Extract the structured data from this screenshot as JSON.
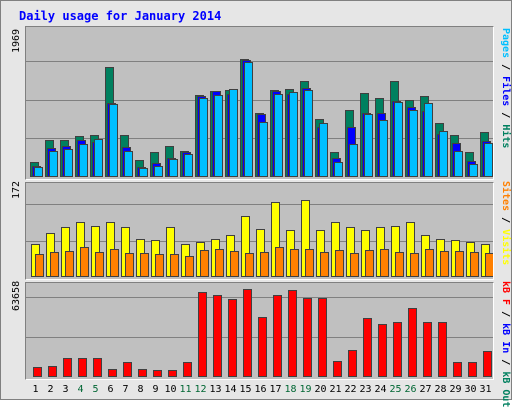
{
  "title": "Daily usage for January 2014",
  "chart_data": [
    {
      "type": "bar",
      "title": "Daily usage for January 2014",
      "panel": "top",
      "ymax_label": "1969",
      "ymax": 1969,
      "categories": [
        "1",
        "2",
        "3",
        "4",
        "5",
        "6",
        "7",
        "8",
        "9",
        "10",
        "11",
        "12",
        "13",
        "14",
        "15",
        "16",
        "17",
        "18",
        "19",
        "20",
        "21",
        "22",
        "23",
        "24",
        "25",
        "26",
        "27",
        "28",
        "29",
        "30",
        "31"
      ],
      "weekend_days": [
        "4",
        "5",
        "11",
        "12",
        "18",
        "19",
        "25",
        "26"
      ],
      "series": [
        {
          "name": "Hits",
          "color": "#00805f",
          "values": [
            235,
            580,
            585,
            655,
            665,
            1750,
            660,
            275,
            400,
            490,
            410,
            1310,
            1360,
            1380,
            1880,
            1020,
            1380,
            1390,
            1520,
            925,
            400,
            1070,
            1340,
            1250,
            1520,
            1220,
            1280,
            850,
            665,
            390,
            710
          ]
        },
        {
          "name": "Files",
          "color": "#0000ff",
          "values": [
            180,
            455,
            485,
            580,
            555,
            1170,
            480,
            160,
            230,
            300,
            390,
            1280,
            1360,
            1320,
            1850,
            1000,
            1360,
            1320,
            1420,
            800,
            300,
            790,
            1020,
            1010,
            1200,
            1110,
            1050,
            690,
            540,
            250,
            570
          ]
        },
        {
          "name": "Pages",
          "color": "#00bfff",
          "values": [
            160,
            420,
            450,
            530,
            600,
            1160,
            420,
            140,
            180,
            280,
            370,
            1250,
            1310,
            1390,
            1820,
            870,
            1320,
            1350,
            1380,
            860,
            240,
            530,
            1000,
            900,
            1190,
            1060,
            1180,
            730,
            420,
            210,
            540
          ]
        }
      ]
    },
    {
      "type": "bar",
      "panel": "middle",
      "ymax_label": "172",
      "ymax": 172,
      "categories": [
        "1",
        "2",
        "3",
        "4",
        "5",
        "6",
        "7",
        "8",
        "9",
        "10",
        "11",
        "12",
        "13",
        "14",
        "15",
        "16",
        "17",
        "18",
        "19",
        "20",
        "21",
        "22",
        "23",
        "24",
        "25",
        "26",
        "27",
        "28",
        "29",
        "30",
        "31"
      ],
      "series": [
        {
          "name": "Visits",
          "color": "#ffff00",
          "values": [
            70,
            95,
            108,
            118,
            110,
            118,
            108,
            82,
            80,
            108,
            72,
            75,
            82,
            90,
            132,
            104,
            162,
            102,
            166,
            100,
            118,
            108,
            100,
            108,
            110,
            118,
            90,
            82,
            80,
            75,
            72
          ]
        },
        {
          "name": "Sites",
          "color": "#ff8000",
          "values": [
            50,
            53,
            56,
            64,
            53,
            60,
            52,
            51,
            50,
            50,
            45,
            58,
            60,
            55,
            52,
            53,
            64,
            60,
            60,
            53,
            57,
            52,
            59,
            60,
            53,
            52,
            60,
            55,
            55,
            54,
            52
          ]
        }
      ]
    },
    {
      "type": "bar",
      "panel": "bottom",
      "ymax_label": "63658",
      "ymax": 63658,
      "categories": [
        "1",
        "2",
        "3",
        "4",
        "5",
        "6",
        "7",
        "8",
        "9",
        "10",
        "11",
        "12",
        "13",
        "14",
        "15",
        "16",
        "17",
        "18",
        "19",
        "20",
        "21",
        "22",
        "23",
        "24",
        "25",
        "26",
        "27",
        "28",
        "29",
        "30",
        "31"
      ],
      "series": [
        {
          "name": "KB F",
          "color": "#ff0000",
          "values": [
            7500,
            8000,
            14000,
            14000,
            14000,
            6000,
            11000,
            6000,
            5000,
            5000,
            11000,
            61500,
            59000,
            56500,
            63658,
            43500,
            59500,
            63000,
            57500,
            57500,
            11500,
            19500,
            42500,
            38000,
            39500,
            50000,
            40000,
            40000,
            11000,
            11000,
            19000
          ]
        }
      ]
    }
  ],
  "legends": {
    "top": [
      {
        "text": "Pages",
        "color": "#00bfff"
      },
      {
        "text": " / ",
        "color": "#000000"
      },
      {
        "text": "Files",
        "color": "#0000ff"
      },
      {
        "text": " / ",
        "color": "#000000"
      },
      {
        "text": "Hits",
        "color": "#00805f"
      }
    ],
    "middle": [
      {
        "text": "Sites",
        "color": "#ff8000"
      },
      {
        "text": " / ",
        "color": "#000000"
      },
      {
        "text": "Visits",
        "color": "#ffff00"
      }
    ],
    "bottom": [
      {
        "text": "kB F",
        "color": "#ff0000"
      },
      {
        "text": " / ",
        "color": "#000000"
      },
      {
        "text": "kB In",
        "color": "#0000ff"
      },
      {
        "text": " / ",
        "color": "#000000"
      },
      {
        "text": "kB Out",
        "color": "#00805f"
      }
    ]
  }
}
